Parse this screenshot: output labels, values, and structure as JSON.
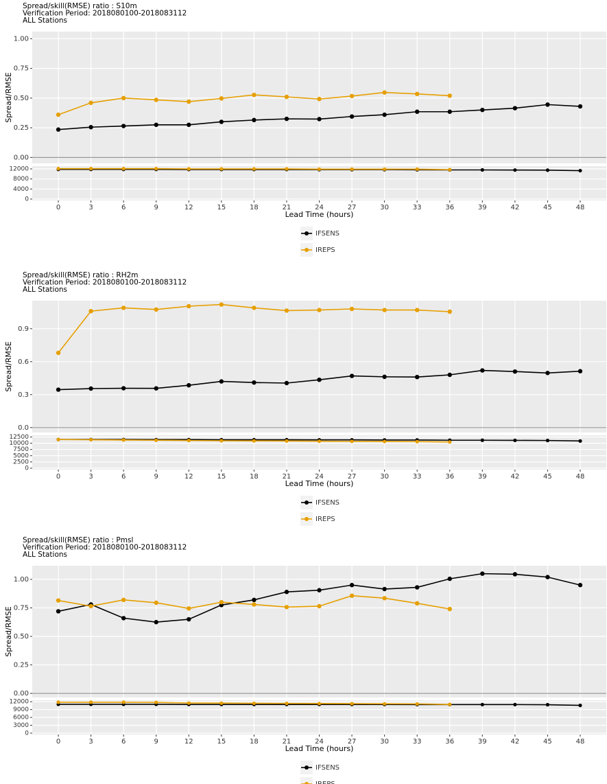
{
  "chart_data": [
    {
      "type": "line",
      "title_lines": [
        "Spread/skill(RMSE) ratio : S10m",
        "Verification Period: 2018080100-2018083112",
        "ALL Stations"
      ],
      "ylabel": "Spread/RMSE",
      "xlabel": "Lead Time (hours)",
      "x": [
        0,
        3,
        6,
        9,
        12,
        15,
        18,
        21,
        24,
        27,
        30,
        33,
        36,
        39,
        42,
        45,
        48
      ],
      "xlim": [
        -2.4,
        50.4
      ],
      "xticks": [
        0,
        3,
        6,
        9,
        12,
        15,
        18,
        21,
        24,
        27,
        30,
        33,
        36,
        39,
        42,
        45,
        48
      ],
      "ylim": [
        -0.05,
        1.06
      ],
      "yticks": [
        {
          "value": 0,
          "label": "0.00"
        },
        {
          "value": 0.25,
          "label": "0.25"
        },
        {
          "value": 0.5,
          "label": "0.50"
        },
        {
          "value": 0.75,
          "label": "0.75"
        },
        {
          "value": 1,
          "label": "1.00"
        }
      ],
      "hline": 0,
      "grid": true,
      "legend": "bottom",
      "count_ylim": [
        -560,
        13100
      ],
      "count_yticks": [
        0,
        4000,
        8000,
        12000
      ],
      "series": [
        {
          "name": "IFSENS",
          "color": "#000000",
          "values": [
            0.235,
            0.255,
            0.265,
            0.275,
            0.275,
            0.3,
            0.315,
            0.325,
            0.323,
            0.345,
            0.36,
            0.385,
            0.385,
            0.4,
            0.415,
            0.445,
            0.43
          ],
          "counts": [
            11800,
            11800,
            11800,
            11800,
            11750,
            11750,
            11750,
            11750,
            11700,
            11700,
            11700,
            11650,
            11600,
            11600,
            11550,
            11500,
            11300
          ]
        },
        {
          "name": "IREPS",
          "color": "#E69F00",
          "values": [
            0.36,
            0.46,
            0.5,
            0.485,
            0.47,
            0.497,
            0.527,
            0.51,
            0.492,
            0.517,
            0.547,
            0.535,
            0.52,
            null,
            null,
            null,
            null
          ],
          "counts": [
            12100,
            12100,
            12100,
            12100,
            12000,
            12000,
            12000,
            12000,
            11900,
            11900,
            11900,
            11900,
            11700,
            null,
            null,
            null,
            null
          ]
        }
      ]
    },
    {
      "type": "line",
      "title_lines": [
        "Spread/skill(RMSE) ratio : RH2m",
        "Verification Period: 2018080100-2018083112",
        "ALL Stations"
      ],
      "ylabel": "Spread/RMSE",
      "xlabel": "Lead Time (hours)",
      "x": [
        0,
        3,
        6,
        9,
        12,
        15,
        18,
        21,
        24,
        27,
        30,
        33,
        36,
        39,
        42,
        45,
        48
      ],
      "xlim": [
        -2.4,
        50.4
      ],
      "xticks": [
        0,
        3,
        6,
        9,
        12,
        15,
        18,
        21,
        24,
        27,
        30,
        33,
        36,
        39,
        42,
        45,
        48
      ],
      "ylim": [
        -0.045,
        1.155
      ],
      "yticks": [
        {
          "value": 0,
          "label": "0.0"
        },
        0.3,
        0.6,
        0.9
      ],
      "hline": 0,
      "grid": true,
      "legend": "bottom",
      "count_ylim": [
        -570,
        13200
      ],
      "count_yticks": [
        0,
        2500,
        5000,
        7500,
        10000,
        12500
      ],
      "series": [
        {
          "name": "IFSENS",
          "color": "#000000",
          "values": [
            0.345,
            0.355,
            0.358,
            0.357,
            0.385,
            0.42,
            0.41,
            0.405,
            0.435,
            0.47,
            0.462,
            0.46,
            0.48,
            0.52,
            0.51,
            0.497,
            0.513
          ],
          "counts": [
            11500,
            11500,
            11500,
            11450,
            11450,
            11400,
            11400,
            11400,
            11350,
            11350,
            11300,
            11300,
            11200,
            11200,
            11150,
            11100,
            10900
          ]
        },
        {
          "name": "IREPS",
          "color": "#E69F00",
          "values": [
            0.68,
            1.06,
            1.09,
            1.075,
            1.105,
            1.12,
            1.09,
            1.065,
            1.07,
            1.08,
            1.07,
            1.07,
            1.055,
            null,
            null,
            null,
            null
          ],
          "counts": [
            11500,
            11400,
            11300,
            11200,
            11100,
            11000,
            10950,
            10900,
            10800,
            10750,
            10700,
            10650,
            10500,
            null,
            null,
            null,
            null
          ]
        }
      ]
    },
    {
      "type": "line",
      "title_lines": [
        "Spread/skill(RMSE) ratio : Pmsl",
        "Verification Period: 2018080100-2018083112",
        "ALL Stations"
      ],
      "ylabel": "Spread/RMSE",
      "xlabel": "Lead Time (hours)",
      "x": [
        0,
        3,
        6,
        9,
        12,
        15,
        18,
        21,
        24,
        27,
        30,
        33,
        36,
        39,
        42,
        45,
        48
      ],
      "xlim": [
        -2.4,
        50.4
      ],
      "xticks": [
        0,
        3,
        6,
        9,
        12,
        15,
        18,
        21,
        24,
        27,
        30,
        33,
        36,
        39,
        42,
        45,
        48
      ],
      "ylim": [
        -0.036,
        1.12
      ],
      "yticks": [
        {
          "value": 0,
          "label": "0.00"
        },
        {
          "value": 0.25,
          "label": "0.25"
        },
        {
          "value": 0.5,
          "label": "0.50"
        },
        {
          "value": 0.75,
          "label": "0.75"
        },
        {
          "value": 1,
          "label": "1.00"
        }
      ],
      "hline": 0,
      "grid": true,
      "legend": "bottom",
      "count_ylim": [
        -545,
        12560
      ],
      "count_yticks": [
        0,
        3000,
        6000,
        9000,
        12000
      ],
      "series": [
        {
          "name": "IFSENS",
          "color": "#000000",
          "values": [
            0.72,
            0.78,
            0.66,
            0.625,
            0.65,
            0.775,
            0.82,
            0.89,
            0.905,
            0.95,
            0.915,
            0.93,
            1.005,
            1.05,
            1.045,
            1.02,
            0.95
          ],
          "counts": [
            11000,
            11000,
            11000,
            11000,
            10950,
            10950,
            10950,
            10950,
            10950,
            10950,
            10950,
            10900,
            10900,
            10900,
            10900,
            10850,
            10600
          ]
        },
        {
          "name": "IREPS",
          "color": "#E69F00",
          "values": [
            0.815,
            0.765,
            0.82,
            0.795,
            0.745,
            0.8,
            0.78,
            0.757,
            0.765,
            0.857,
            0.835,
            0.79,
            0.74,
            null,
            null,
            null,
            null
          ],
          "counts": [
            11800,
            11800,
            11800,
            11750,
            11500,
            11450,
            11400,
            11350,
            11300,
            11250,
            11200,
            11150,
            10950,
            null,
            null,
            null,
            null
          ]
        }
      ]
    }
  ]
}
